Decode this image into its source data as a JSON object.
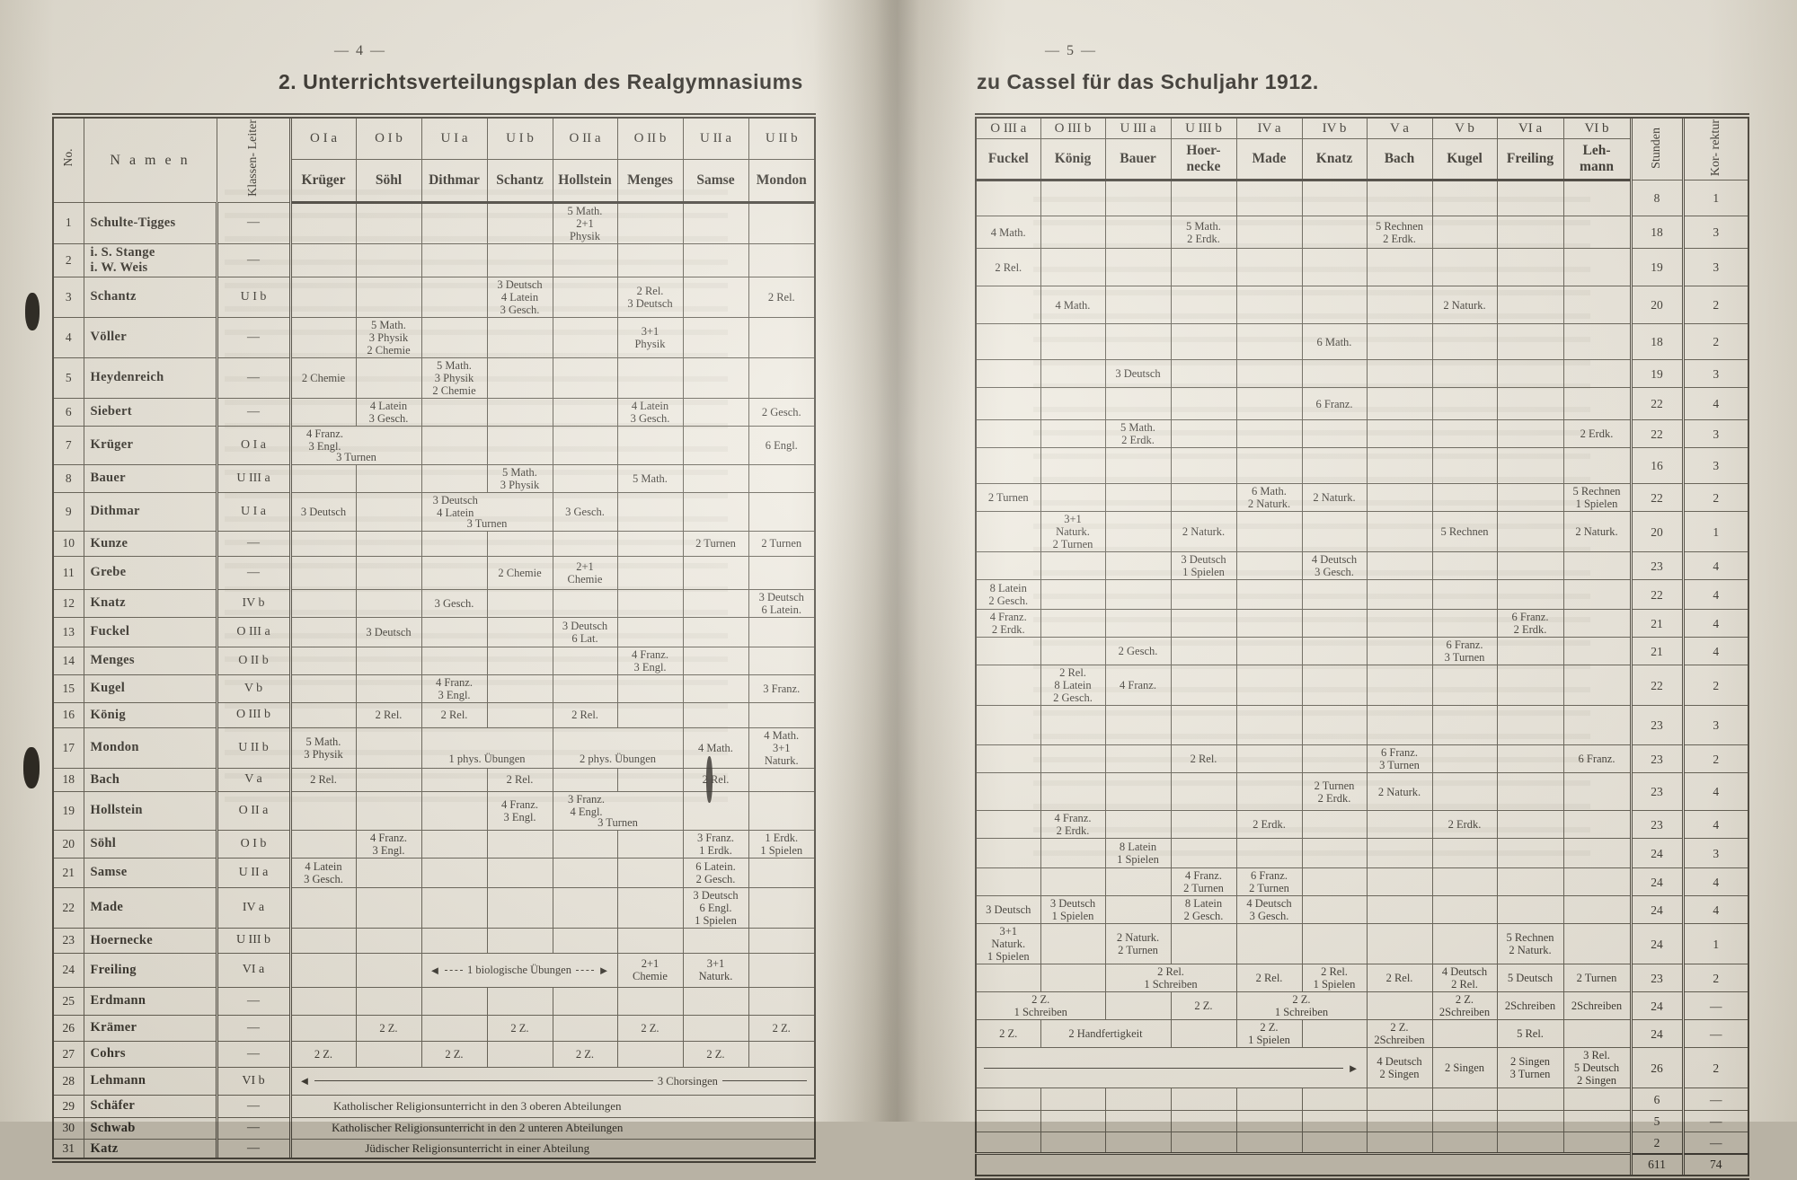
{
  "page_left": {
    "page_number": "—  4  —",
    "title": "2. Unterrichtsverteilungsplan des Realgymnasiums",
    "headers": {
      "no": "No.",
      "namen": "N a m e n",
      "leiter": "Klassen-\nLeiter"
    },
    "classes": [
      {
        "cls": "O I a",
        "teacher": "Krüger"
      },
      {
        "cls": "O I b",
        "teacher": "Söhl"
      },
      {
        "cls": "U I a",
        "teacher": "Dithmar"
      },
      {
        "cls": "U I b",
        "teacher": "Schantz"
      },
      {
        "cls": "O II a",
        "teacher": "Hollstein"
      },
      {
        "cls": "O II b",
        "teacher": "Menges"
      },
      {
        "cls": "U II a",
        "teacher": "Samse"
      },
      {
        "cls": "U II b",
        "teacher": "Mondon"
      }
    ],
    "rows": [
      {
        "no": "1",
        "name": "Schulte-Tigges",
        "leader": "—",
        "cells": [
          {
            "c": 4,
            "t": "5 Math.\n2+1\nPhysik"
          }
        ]
      },
      {
        "no": "2",
        "name": "i. S. Stange\ni. W. Weis",
        "leader": "—",
        "cells": []
      },
      {
        "no": "3",
        "name": "Schantz",
        "leader": "U I b",
        "cells": [
          {
            "c": 3,
            "t": "3 Deutsch\n4 Latein\n3 Gesch."
          },
          {
            "c": 5,
            "t": "2 Rel.\n3 Deutsch"
          },
          {
            "c": 7,
            "t": "2 Rel."
          }
        ]
      },
      {
        "no": "4",
        "name": "Völler",
        "leader": "—",
        "cells": [
          {
            "c": 1,
            "t": "5 Math.\n3 Physik\n2 Chemie"
          },
          {
            "c": 5,
            "t": "3+1\nPhysik"
          }
        ]
      },
      {
        "no": "5",
        "name": "Heydenreich",
        "leader": "—",
        "cells": [
          {
            "c": 0,
            "t": "2 Chemie"
          },
          {
            "c": 2,
            "t": "5 Math.\n3 Physik\n2 Chemie"
          }
        ]
      },
      {
        "no": "6",
        "name": "Siebert",
        "leader": "—",
        "cells": [
          {
            "c": 1,
            "t": "4 Latein\n3 Gesch."
          },
          {
            "c": 5,
            "t": "4 Latein\n3 Gesch."
          },
          {
            "c": 7,
            "t": "2 Gesch."
          }
        ]
      },
      {
        "no": "7",
        "name": "Krüger",
        "leader": "O I a",
        "cells": [
          {
            "c": 0,
            "s": 2,
            "t": "4 Franz.\n3 Engl.",
            "sub": "3 Turnen"
          },
          {
            "c": 7,
            "t": "6 Engl."
          }
        ]
      },
      {
        "no": "8",
        "name": "Bauer",
        "leader": "U III a",
        "cells": [
          {
            "c": 3,
            "t": "5 Math.\n3 Physik"
          },
          {
            "c": 5,
            "t": "5 Math."
          }
        ]
      },
      {
        "no": "9",
        "name": "Dithmar",
        "leader": "U I a",
        "cells": [
          {
            "c": 0,
            "t": "3 Deutsch"
          },
          {
            "c": 2,
            "s": 2,
            "t": "3 Deutsch\n4 Latein",
            "sub": "3 Turnen"
          },
          {
            "c": 4,
            "t": "3 Gesch."
          }
        ]
      },
      {
        "no": "10",
        "name": "Kunze",
        "leader": "—",
        "cells": [
          {
            "c": 6,
            "t": "2 Turnen"
          },
          {
            "c": 7,
            "t": "2 Turnen"
          }
        ]
      },
      {
        "no": "11",
        "name": "Grebe",
        "leader": "—",
        "cells": [
          {
            "c": 3,
            "t": "2 Chemie"
          },
          {
            "c": 4,
            "t": "2+1\nChemie"
          }
        ]
      },
      {
        "no": "12",
        "name": "Knatz",
        "leader": "IV b",
        "cells": [
          {
            "c": 2,
            "t": "3 Gesch."
          },
          {
            "c": 7,
            "t": "3 Deutsch\n6 Latein."
          }
        ]
      },
      {
        "no": "13",
        "name": "Fuckel",
        "leader": "O III a",
        "cells": [
          {
            "c": 1,
            "t": "3 Deutsch"
          },
          {
            "c": 4,
            "t": "3 Deutsch\n6 Lat."
          }
        ]
      },
      {
        "no": "14",
        "name": "Menges",
        "leader": "O II b",
        "cells": [
          {
            "c": 5,
            "t": "4 Franz.\n3 Engl."
          }
        ]
      },
      {
        "no": "15",
        "name": "Kugel",
        "leader": "V b",
        "cells": [
          {
            "c": 2,
            "t": "4 Franz.\n3 Engl."
          },
          {
            "c": 7,
            "t": "3 Franz."
          }
        ]
      },
      {
        "no": "16",
        "name": "König",
        "leader": "O III b",
        "cells": [
          {
            "c": 1,
            "t": "2 Rel."
          },
          {
            "c": 2,
            "t": "2 Rel."
          },
          {
            "c": 4,
            "t": "2 Rel."
          }
        ]
      },
      {
        "no": "17",
        "name": "Mondon",
        "leader": "U II b",
        "cells": [
          {
            "c": 0,
            "t": "5 Math.\n3 Physik"
          },
          {
            "c": 2,
            "s": 2,
            "t": "1 phys. Übungen",
            "cls": "low"
          },
          {
            "c": 4,
            "s": 2,
            "t": "2 phys. Übungen",
            "cls": "low"
          },
          {
            "c": 6,
            "t": "4 Math."
          },
          {
            "c": 7,
            "t": "4 Math.\n3+1\nNaturk."
          }
        ]
      },
      {
        "no": "18",
        "name": "Bach",
        "leader": "V a",
        "cells": [
          {
            "c": 0,
            "t": "2 Rel."
          },
          {
            "c": 3,
            "t": "2 Rel."
          },
          {
            "c": 6,
            "t": "2 Rel."
          }
        ]
      },
      {
        "no": "19",
        "name": "Hollstein",
        "leader": "O II a",
        "cells": [
          {
            "c": 3,
            "t": "4 Franz.\n3 Engl."
          },
          {
            "c": 4,
            "s": 2,
            "t": "3 Franz.\n4 Engl.",
            "sub": "3 Turnen"
          }
        ]
      },
      {
        "no": "20",
        "name": "Söhl",
        "leader": "O I b",
        "cells": [
          {
            "c": 1,
            "t": "4 Franz.\n3 Engl."
          },
          {
            "c": 6,
            "t": "3 Franz.\n1 Erdk."
          },
          {
            "c": 7,
            "t": "1 Erdk.\n1 Spielen"
          }
        ]
      },
      {
        "no": "21",
        "name": "Samse",
        "leader": "U II a",
        "cells": [
          {
            "c": 0,
            "t": "4 Latein\n3 Gesch."
          },
          {
            "c": 6,
            "t": "6 Latein.\n2 Gesch."
          }
        ]
      },
      {
        "no": "22",
        "name": "Made",
        "leader": "IV a",
        "cells": [
          {
            "c": 6,
            "t": "3 Deutsch\n6 Engl.\n1 Spielen"
          }
        ]
      },
      {
        "no": "23",
        "name": "Hoernecke",
        "leader": "U III b",
        "cells": []
      },
      {
        "no": "24",
        "name": "Freiling",
        "leader": "VI a",
        "cells": [
          {
            "c": 2,
            "s": 3,
            "t": "1 biologische Übungen",
            "cls": "arrows-both"
          },
          {
            "c": 5,
            "t": "2+1\nChemie"
          },
          {
            "c": 6,
            "t": "3+1\nNaturk."
          }
        ]
      },
      {
        "no": "25",
        "name": "Erdmann",
        "leader": "—",
        "cells": []
      },
      {
        "no": "26",
        "name": "Krämer",
        "leader": "—",
        "cells": [
          {
            "c": 1,
            "t": "2 Z."
          },
          {
            "c": 3,
            "t": "2 Z."
          },
          {
            "c": 5,
            "t": "2 Z."
          },
          {
            "c": 7,
            "t": "2 Z."
          }
        ]
      },
      {
        "no": "27",
        "name": "Cohrs",
        "leader": "—",
        "cells": [
          {
            "c": 0,
            "t": "2 Z."
          },
          {
            "c": 2,
            "t": "2 Z."
          },
          {
            "c": 4,
            "t": "2 Z."
          },
          {
            "c": 6,
            "t": "2 Z."
          }
        ]
      },
      {
        "no": "28",
        "name": "Lehmann",
        "leader": "VI b",
        "cells": [
          {
            "c": 0,
            "s": 8,
            "t": "3 Chorsingen",
            "cls": "chor-left"
          }
        ]
      },
      {
        "no": "29",
        "name": "Schäfer",
        "leader": "—",
        "cells": [
          {
            "c": 0,
            "s": 8,
            "t": "Katholischer Religionsunterricht in den 3 oberen Abteilungen",
            "cls": "wide"
          }
        ]
      },
      {
        "no": "30",
        "name": "Schwab",
        "leader": "—",
        "cells": [
          {
            "c": 0,
            "s": 8,
            "t": "Katholischer Religionsunterricht in den 2 unteren Abteilungen",
            "cls": "wide"
          }
        ]
      },
      {
        "no": "31",
        "name": "Katz",
        "leader": "—",
        "cells": [
          {
            "c": 0,
            "s": 8,
            "t": "Jüdischer Religionsunterricht in einer Abteilung",
            "cls": "wide"
          }
        ]
      }
    ]
  },
  "page_right": {
    "page_number": "—  5  —",
    "title": "zu Cassel für das Schuljahr 1912.",
    "stunden_label": "Stunden",
    "korrektur_label": "Kor-\nrektur",
    "classes": [
      {
        "cls": "O III a",
        "teacher": "Fuckel"
      },
      {
        "cls": "O III b",
        "teacher": "König"
      },
      {
        "cls": "U III a",
        "teacher": "Bauer"
      },
      {
        "cls": "U III b",
        "teacher": "Hoer-\nnecke"
      },
      {
        "cls": "IV a",
        "teacher": "Made"
      },
      {
        "cls": "IV b",
        "teacher": "Knatz"
      },
      {
        "cls": "V a",
        "teacher": "Bach"
      },
      {
        "cls": "V b",
        "teacher": "Kugel"
      },
      {
        "cls": "VI a",
        "teacher": "Freiling"
      },
      {
        "cls": "VI b",
        "teacher": "Leh-\nmann"
      }
    ],
    "rows": [
      {
        "cells": [],
        "st": "8",
        "ko": "1"
      },
      {
        "cells": [
          {
            "c": 0,
            "t": "4 Math."
          },
          {
            "c": 3,
            "t": "5 Math.\n2 Erdk."
          },
          {
            "c": 6,
            "t": "5 Rechnen\n2 Erdk."
          }
        ],
        "st": "18",
        "ko": "3"
      },
      {
        "cells": [
          {
            "c": 0,
            "t": "2 Rel."
          }
        ],
        "st": "19",
        "ko": "3"
      },
      {
        "cells": [
          {
            "c": 1,
            "t": "4 Math."
          },
          {
            "c": 7,
            "t": "2 Naturk."
          }
        ],
        "st": "20",
        "ko": "2"
      },
      {
        "cells": [
          {
            "c": 5,
            "t": "6 Math."
          }
        ],
        "st": "18",
        "ko": "2"
      },
      {
        "cells": [
          {
            "c": 2,
            "t": "3 Deutsch"
          }
        ],
        "st": "19",
        "ko": "3"
      },
      {
        "cells": [
          {
            "c": 5,
            "t": "6 Franz."
          }
        ],
        "st": "22",
        "ko": "4"
      },
      {
        "cells": [
          {
            "c": 2,
            "t": "5 Math.\n2 Erdk."
          },
          {
            "c": 9,
            "t": "2 Erdk."
          }
        ],
        "st": "22",
        "ko": "3"
      },
      {
        "cells": [],
        "st": "16",
        "ko": "3"
      },
      {
        "cells": [
          {
            "c": 0,
            "t": "2 Turnen"
          },
          {
            "c": 4,
            "t": "6 Math.\n2 Naturk."
          },
          {
            "c": 5,
            "t": "2 Naturk."
          },
          {
            "c": 9,
            "t": "5 Rechnen\n1 Spielen"
          }
        ],
        "st": "22",
        "ko": "2"
      },
      {
        "cells": [
          {
            "c": 1,
            "t": "3+1\nNaturk.\n2 Turnen"
          },
          {
            "c": 3,
            "t": "2 Naturk."
          },
          {
            "c": 7,
            "t": "5 Rechnen"
          },
          {
            "c": 9,
            "t": "2 Naturk."
          }
        ],
        "st": "20",
        "ko": "1"
      },
      {
        "cells": [
          {
            "c": 3,
            "t": "3 Deutsch\n1 Spielen"
          },
          {
            "c": 5,
            "t": "4 Deutsch\n3 Gesch."
          }
        ],
        "st": "23",
        "ko": "4"
      },
      {
        "cells": [
          {
            "c": 0,
            "t": "8 Latein\n2 Gesch."
          }
        ],
        "st": "22",
        "ko": "4"
      },
      {
        "cells": [
          {
            "c": 0,
            "t": "4 Franz.\n2 Erdk."
          },
          {
            "c": 8,
            "t": "6 Franz.\n2 Erdk."
          }
        ],
        "st": "21",
        "ko": "4"
      },
      {
        "cells": [
          {
            "c": 2,
            "t": "2 Gesch."
          },
          {
            "c": 7,
            "t": "6 Franz.\n3 Turnen"
          }
        ],
        "st": "21",
        "ko": "4"
      },
      {
        "cells": [
          {
            "c": 1,
            "t": "2 Rel.\n8 Latein\n2 Gesch."
          },
          {
            "c": 2,
            "t": "4 Franz."
          }
        ],
        "st": "22",
        "ko": "2"
      },
      {
        "cells": [],
        "st": "23",
        "ko": "3"
      },
      {
        "cells": [
          {
            "c": 3,
            "t": "2 Rel."
          },
          {
            "c": 6,
            "t": "6 Franz.\n3 Turnen"
          },
          {
            "c": 9,
            "t": "6 Franz."
          }
        ],
        "st": "23",
        "ko": "2"
      },
      {
        "cells": [
          {
            "c": 5,
            "t": "2 Turnen\n2 Erdk."
          },
          {
            "c": 6,
            "t": "2 Naturk."
          }
        ],
        "st": "23",
        "ko": "4"
      },
      {
        "cells": [
          {
            "c": 1,
            "t": "4 Franz.\n2 Erdk."
          },
          {
            "c": 4,
            "t": "2 Erdk."
          },
          {
            "c": 7,
            "t": "2 Erdk."
          }
        ],
        "st": "23",
        "ko": "4"
      },
      {
        "cells": [
          {
            "c": 2,
            "t": "8 Latein\n1 Spielen"
          }
        ],
        "st": "24",
        "ko": "3"
      },
      {
        "cells": [
          {
            "c": 3,
            "t": "4 Franz.\n2 Turnen"
          },
          {
            "c": 4,
            "t": "6 Franz.\n2 Turnen"
          }
        ],
        "st": "24",
        "ko": "4"
      },
      {
        "cells": [
          {
            "c": 0,
            "t": "3 Deutsch"
          },
          {
            "c": 1,
            "t": "3 Deutsch\n1 Spielen"
          },
          {
            "c": 3,
            "t": "8 Latein\n2 Gesch."
          },
          {
            "c": 4,
            "t": "4 Deutsch\n3 Gesch."
          }
        ],
        "st": "24",
        "ko": "4"
      },
      {
        "cells": [
          {
            "c": 0,
            "t": "3+1\nNaturk.\n1 Spielen"
          },
          {
            "c": 2,
            "t": "2 Naturk.\n2 Turnen"
          },
          {
            "c": 8,
            "t": "5 Rechnen\n2 Naturk."
          }
        ],
        "st": "24",
        "ko": "1"
      },
      {
        "cells": [
          {
            "c": 2,
            "s": 2,
            "t": "2 Rel.\n1 Schreiben"
          },
          {
            "c": 4,
            "t": "2 Rel."
          },
          {
            "c": 5,
            "t": "2 Rel.\n1 Spielen"
          },
          {
            "c": 6,
            "t": "2 Rel."
          },
          {
            "c": 7,
            "t": "4 Deutsch\n2 Rel."
          },
          {
            "c": 8,
            "t": "5 Deutsch"
          },
          {
            "c": 9,
            "t": "2 Turnen"
          }
        ],
        "st": "23",
        "ko": "2"
      },
      {
        "cells": [
          {
            "c": 0,
            "s": 2,
            "t": "2 Z.\n1 Schreiben"
          },
          {
            "c": 3,
            "t": "2 Z."
          },
          {
            "c": 4,
            "s": 2,
            "t": "2 Z.\n1 Schreiben"
          },
          {
            "c": 7,
            "t": "2 Z.\n2Schreiben"
          },
          {
            "c": 8,
            "t": "2Schreiben"
          },
          {
            "c": 9,
            "t": "2Schreiben"
          }
        ],
        "st": "24",
        "ko": "—"
      },
      {
        "cells": [
          {
            "c": 0,
            "t": "2 Z."
          },
          {
            "c": 1,
            "s": 2,
            "t": "2 Handfertigkeit"
          },
          {
            "c": 4,
            "t": "2 Z.\n1 Spielen"
          },
          {
            "c": 6,
            "t": "2 Z.\n2Schreiben"
          },
          {
            "c": 8,
            "t": "5 Rel."
          }
        ],
        "st": "24",
        "ko": "—"
      },
      {
        "cells": [
          {
            "c": 0,
            "s": 6,
            "t": "",
            "cls": "chor-right"
          },
          {
            "c": 6,
            "t": "4 Deutsch\n2 Singen"
          },
          {
            "c": 7,
            "t": "2 Singen"
          },
          {
            "c": 8,
            "t": "2 Singen\n3 Turnen"
          },
          {
            "c": 9,
            "t": "3 Rel.\n5 Deutsch\n2 Singen"
          }
        ],
        "st": "26",
        "ko": "2"
      },
      {
        "cells": [],
        "st": "6",
        "ko": "—"
      },
      {
        "cells": [],
        "st": "5",
        "ko": "—"
      },
      {
        "cells": [],
        "st": "2",
        "ko": "—"
      }
    ],
    "totals": {
      "stunden": "611",
      "korrektur": "74"
    }
  }
}
